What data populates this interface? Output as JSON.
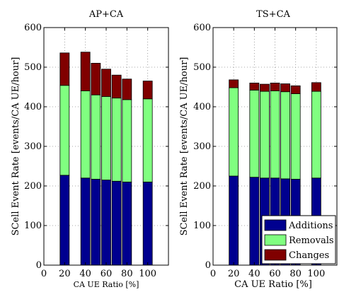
{
  "chart_data": [
    {
      "type": "bar",
      "stacked": true,
      "title": "AP+CA",
      "xlabel": "CA UE Ratio [%]",
      "ylabel": "SCell Event Rate [events/CA UE/hour]",
      "x": [
        20,
        40,
        50,
        60,
        70,
        80,
        100
      ],
      "xlim": [
        0,
        120
      ],
      "ylim": [
        0,
        600
      ],
      "xticks": [
        "0",
        "20",
        "40",
        "60",
        "80",
        "100"
      ],
      "yticks": [
        "0",
        "100",
        "200",
        "300",
        "400",
        "500",
        "600"
      ],
      "grid": true,
      "series": [
        {
          "name": "Additions",
          "color": "#00008f",
          "values": [
            227,
            220,
            217,
            215,
            212,
            210,
            210
          ]
        },
        {
          "name": "Removals",
          "color": "#80ff80",
          "values": [
            227,
            220,
            213,
            211,
            210,
            208,
            210
          ]
        },
        {
          "name": "Changes",
          "color": "#800000",
          "values": [
            82,
            98,
            80,
            69,
            58,
            52,
            45
          ]
        }
      ]
    },
    {
      "type": "bar",
      "stacked": true,
      "title": "TS+CA",
      "xlabel": "CA UE Ratio [%]",
      "ylabel": "SCell Event Rate [events/CA UE/hour]",
      "x": [
        20,
        40,
        50,
        60,
        70,
        80,
        100
      ],
      "xlim": [
        0,
        120
      ],
      "ylim": [
        0,
        600
      ],
      "xticks": [
        "0",
        "20",
        "40",
        "60",
        "80",
        "100"
      ],
      "yticks": [
        "0",
        "100",
        "200",
        "300",
        "400",
        "500",
        "600"
      ],
      "grid": true,
      "legend_position": "bottom-right",
      "series": [
        {
          "name": "Additions",
          "color": "#00008f",
          "values": [
            225,
            222,
            220,
            220,
            218,
            217,
            220
          ]
        },
        {
          "name": "Removals",
          "color": "#80ff80",
          "values": [
            223,
            220,
            219,
            220,
            220,
            216,
            219
          ]
        },
        {
          "name": "Changes",
          "color": "#800000",
          "values": [
            20,
            18,
            18,
            20,
            20,
            20,
            22
          ]
        }
      ]
    }
  ]
}
